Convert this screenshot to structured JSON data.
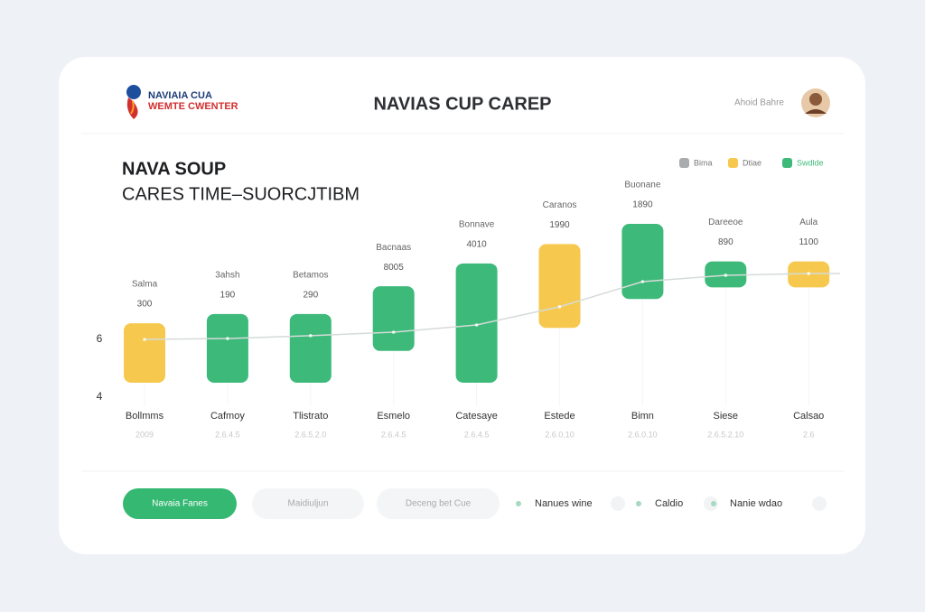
{
  "header": {
    "logo_line1": "NAVIAIA CUA",
    "logo_line2": "WEMTE CWENTER",
    "title": "NAVIAS CUP CAREP",
    "user": "Ahoid Bahre"
  },
  "chart_data": {
    "type": "floating-bar",
    "title_line1": "NAVA SOUP",
    "title_line2": "CARES TIME–SUORCJTIBM",
    "legend": [
      {
        "label": "Bima",
        "color": "#a9abae"
      },
      {
        "label": "Dtiae",
        "color": "#f6c94e"
      },
      {
        "label": "Swdlde",
        "color": "#3dba7a"
      }
    ],
    "categories": [
      "Bollmms",
      "Cafmoy",
      "Tlistrato",
      "Esmelo",
      "Catesaye",
      "Estede",
      "Bimn",
      "Siese",
      "Calsao"
    ],
    "dates": [
      "2009",
      "2.6.4.5",
      "2.6.5.2.0",
      "2.6.4.5",
      "2.6.4.5",
      "2.6.0.10",
      "2.6.0.10",
      "2.6.5.2.10",
      "2.6"
    ],
    "bar_names": [
      "Salma",
      "3ahsh",
      "Betamos",
      "Bacnaas",
      "Bonnave",
      "Caranos",
      "Buonane",
      "Dareeoe",
      "Aula"
    ],
    "bar_texts": [
      "300",
      "190",
      "290",
      "8005",
      "4010",
      "1990",
      "1890",
      "890",
      "1100"
    ],
    "low": [
      4.5,
      4.5,
      4.5,
      5.6,
      4.5,
      6.4,
      7.4,
      7.8,
      7.8
    ],
    "high": [
      6.56,
      6.88,
      6.88,
      7.84,
      8.63,
      9.3,
      10.0,
      8.7,
      8.7
    ],
    "colors": [
      "#f6c94e",
      "#3dba7a",
      "#3dba7a",
      "#3dba7a",
      "#3dba7a",
      "#f6c94e",
      "#3dba7a",
      "#3dba7a",
      "#f6c94e"
    ],
    "trend": [
      6.0,
      6.03,
      6.13,
      6.25,
      6.5,
      7.13,
      8.0,
      8.22,
      8.28
    ],
    "trend_color": "#d5dbd8",
    "ylim": [
      4,
      11.5
    ],
    "yticks": [
      4,
      6
    ]
  },
  "footer": {
    "buttons": [
      "Navaia Fanes",
      "Maidiuljun",
      "Deceng bet Cue"
    ],
    "toggles": [
      "Nanues wine",
      "Caldio",
      "Nanie wdao"
    ]
  }
}
